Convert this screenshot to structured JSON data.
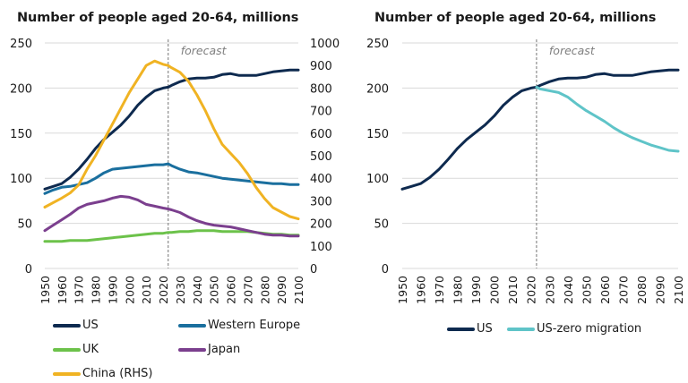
{
  "chart_data": [
    {
      "type": "line",
      "title": "Number of people aged 20-64, millions",
      "xlabel": "",
      "ylabel": "",
      "x_ticks": [
        1950,
        1960,
        1970,
        1980,
        1990,
        2000,
        2010,
        2020,
        2030,
        2040,
        2050,
        2060,
        2070,
        2080,
        2090,
        2100
      ],
      "xlim": [
        1950,
        2100
      ],
      "ylim": [
        0,
        250
      ],
      "y_ticks": [
        0,
        50,
        100,
        150,
        200,
        250
      ],
      "y2lim": [
        0,
        1000
      ],
      "y2_ticks": [
        0,
        100,
        200,
        300,
        400,
        500,
        600,
        700,
        800,
        900,
        1000
      ],
      "grid": true,
      "forecast_line_x": 2023,
      "annotation": "forecast",
      "legend_position": "bottom",
      "x": [
        1950,
        1955,
        1960,
        1965,
        1970,
        1975,
        1980,
        1985,
        1990,
        1995,
        2000,
        2005,
        2010,
        2015,
        2020,
        2023,
        2025,
        2030,
        2035,
        2040,
        2045,
        2050,
        2055,
        2060,
        2065,
        2070,
        2075,
        2080,
        2085,
        2090,
        2095,
        2100
      ],
      "series": [
        {
          "name": "US",
          "axis": "left",
          "color": "#0e2a4f",
          "values": [
            88,
            91,
            94,
            101,
            110,
            121,
            133,
            143,
            151,
            159,
            169,
            181,
            190,
            197,
            200,
            201,
            203,
            207,
            210,
            211,
            211,
            212,
            215,
            216,
            214,
            214,
            214,
            216,
            218,
            219,
            220,
            220
          ]
        },
        {
          "name": "Western Europe",
          "axis": "left",
          "color": "#1a6f9e",
          "values": [
            83,
            87,
            90,
            91,
            93,
            95,
            100,
            106,
            110,
            111,
            112,
            113,
            114,
            115,
            115,
            116,
            114,
            110,
            107,
            106,
            104,
            102,
            100,
            99,
            98,
            97,
            96,
            95,
            94,
            94,
            93,
            93
          ]
        },
        {
          "name": "UK",
          "axis": "left",
          "color": "#6cc24a",
          "values": [
            30,
            30,
            30,
            31,
            31,
            31,
            32,
            33,
            34,
            35,
            36,
            37,
            38,
            39,
            39,
            40,
            40,
            41,
            41,
            42,
            42,
            42,
            41,
            41,
            41,
            41,
            40,
            39,
            38,
            38,
            37,
            37
          ]
        },
        {
          "name": "Japan",
          "axis": "left",
          "color": "#7b3f8e",
          "values": [
            42,
            48,
            54,
            60,
            67,
            71,
            73,
            75,
            78,
            80,
            79,
            76,
            71,
            69,
            67,
            66,
            65,
            62,
            57,
            53,
            50,
            48,
            47,
            46,
            44,
            42,
            40,
            38,
            37,
            37,
            36,
            36
          ]
        },
        {
          "name": "China (RHS)",
          "axis": "right",
          "color": "#f0b323",
          "values": [
            272,
            292,
            312,
            335,
            370,
            440,
            500,
            570,
            640,
            710,
            780,
            840,
            900,
            920,
            905,
            900,
            890,
            870,
            830,
            770,
            700,
            620,
            550,
            510,
            470,
            420,
            360,
            310,
            270,
            250,
            230,
            220
          ]
        }
      ]
    },
    {
      "type": "line",
      "title": "Number of people aged 20-64, millions",
      "xlabel": "",
      "ylabel": "",
      "x_ticks": [
        1950,
        1960,
        1970,
        1980,
        1990,
        2000,
        2010,
        2020,
        2030,
        2040,
        2050,
        2060,
        2070,
        2080,
        2090,
        2100
      ],
      "xlim": [
        1950,
        2100
      ],
      "ylim": [
        0,
        250
      ],
      "y_ticks": [
        0,
        50,
        100,
        150,
        200,
        250
      ],
      "grid": true,
      "forecast_line_x": 2023,
      "annotation": "forecast",
      "legend_position": "bottom",
      "series": [
        {
          "name": "US",
          "color": "#0e2a4f",
          "x": [
            1950,
            1955,
            1960,
            1965,
            1970,
            1975,
            1980,
            1985,
            1990,
            1995,
            2000,
            2005,
            2010,
            2015,
            2020,
            2023,
            2025,
            2030,
            2035,
            2040,
            2045,
            2050,
            2055,
            2060,
            2065,
            2070,
            2075,
            2080,
            2085,
            2090,
            2095,
            2100
          ],
          "values": [
            88,
            91,
            94,
            101,
            110,
            121,
            133,
            143,
            151,
            159,
            169,
            181,
            190,
            197,
            200,
            201,
            203,
            207,
            210,
            211,
            211,
            212,
            215,
            216,
            214,
            214,
            214,
            216,
            218,
            219,
            220,
            220
          ]
        },
        {
          "name": "US-zero migration",
          "color": "#5fc4c8",
          "x": [
            2023,
            2025,
            2030,
            2035,
            2040,
            2045,
            2050,
            2055,
            2060,
            2065,
            2070,
            2075,
            2080,
            2085,
            2090,
            2095,
            2100
          ],
          "values": [
            201,
            199,
            197,
            195,
            190,
            182,
            175,
            169,
            163,
            156,
            150,
            145,
            141,
            137,
            134,
            131,
            130
          ]
        }
      ]
    }
  ],
  "panels": [
    {
      "title": "Number of people aged 20-64, millions"
    },
    {
      "title": "Number of people aged 20-64, millions"
    }
  ]
}
